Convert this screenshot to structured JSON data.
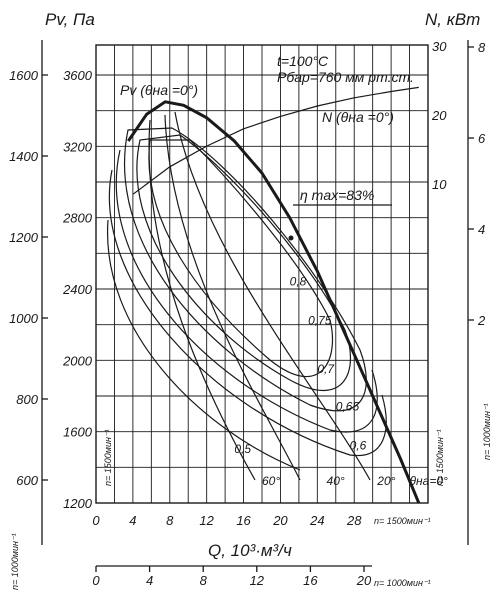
{
  "chart_data": {
    "type": "line",
    "title": "",
    "texts": {
      "pv_label": "Pv, Па",
      "n_label": "N, кВт",
      "x_label": "Q, 10³·м³/ч",
      "temperature": "t=100°C",
      "pressure": "Pбар=760 мм рт.ст.",
      "pv_curve_label": "Pv (θна =0°)",
      "n_curve_label": "N (θна =0°)",
      "eta_label": "η max=83%",
      "n_1500": "n= 1500мин⁻¹",
      "n_1000": "n= 1000мин⁻¹",
      "x_unit_1500": "n= 1500мин⁻¹",
      "x_unit_1000": "n= 1000мин⁻¹"
    },
    "y_main": {
      "label": "Pv, Па",
      "n": "1500",
      "range": [
        1200,
        3600
      ],
      "ticks": [
        1200,
        1600,
        2000,
        2400,
        2800,
        3200,
        3600
      ]
    },
    "y_left_1000": {
      "n": "1000",
      "range": [
        600,
        1600
      ],
      "ticks": [
        600,
        800,
        1000,
        1200,
        1400,
        1600
      ]
    },
    "y_power_1500": {
      "label": "N, кВт",
      "n": "1500",
      "ticks": [
        10,
        20,
        30
      ]
    },
    "y_power_1000": {
      "n": "1000",
      "ticks": [
        2,
        4,
        6,
        8
      ]
    },
    "x_1500": {
      "label": "Q, 10³·м³/ч",
      "range": [
        0,
        36
      ],
      "ticks": [
        0,
        4,
        8,
        12,
        16,
        20,
        24,
        28
      ]
    },
    "x_1000": {
      "ticks": [
        0,
        4,
        8,
        12,
        16,
        20
      ]
    },
    "grid": true,
    "series": [
      {
        "name": "Pv (θна =0°)",
        "x": [
          3.5,
          5.5,
          7.5,
          9.5,
          12,
          15,
          18,
          21,
          24,
          27,
          30,
          33,
          35
        ],
        "y": [
          3230,
          3380,
          3450,
          3430,
          3360,
          3230,
          3050,
          2800,
          2500,
          2150,
          1800,
          1450,
          1200
        ]
      },
      {
        "name": "N (θна =0°)",
        "x": [
          4,
          6,
          8,
          12,
          16,
          20,
          24,
          28,
          32,
          35
        ],
        "y": [
          8.5,
          10.5,
          12.5,
          15.5,
          18,
          19.8,
          21.3,
          22.5,
          23.4,
          24
        ]
      }
    ],
    "efficiency_labels": [
      {
        "text": "0,8",
        "x": 21,
        "y": 2420
      },
      {
        "text": "0,75",
        "x": 23,
        "y": 2200
      },
      {
        "text": "0,7",
        "x": 24,
        "y": 1930
      },
      {
        "text": "0,65",
        "x": 26,
        "y": 1720
      },
      {
        "text": "0,6",
        "x": 27.5,
        "y": 1500
      },
      {
        "text": "0,5",
        "x": 15,
        "y": 1480
      }
    ],
    "blade_angle_labels": [
      {
        "text": "60°",
        "x": 18,
        "y": 1300
      },
      {
        "text": "40°",
        "x": 25,
        "y": 1300
      },
      {
        "text": "20°",
        "x": 30.5,
        "y": 1300
      },
      {
        "text": "θна=0°",
        "x": 34,
        "y": 1300
      }
    ]
  }
}
